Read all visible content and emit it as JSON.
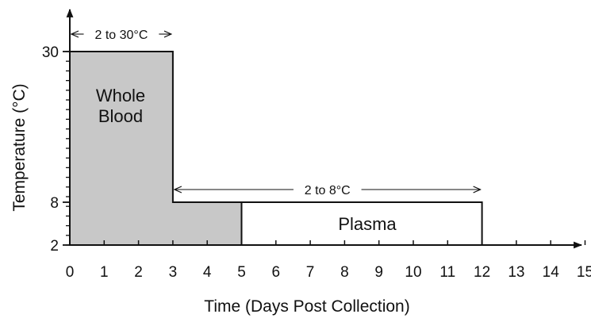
{
  "chart_data": {
    "type": "area",
    "xlabel": "Time (Days Post Collection)",
    "ylabel": "Temperature (°C)",
    "xlim": [
      0,
      15
    ],
    "x_ticks": [
      "0",
      "1",
      "2",
      "3",
      "4",
      "5",
      "6",
      "7",
      "8",
      "9",
      "10",
      "11",
      "12",
      "13",
      "14",
      "15"
    ],
    "y_ticks": [
      {
        "value": 2,
        "label": "2"
      },
      {
        "value": 8,
        "label": "8"
      },
      {
        "value": 30,
        "label": "30"
      }
    ],
    "grid": false,
    "regions": [
      {
        "name": "Whole Blood",
        "fill": "#c8c8c8",
        "points": [
          [
            0,
            2
          ],
          [
            0,
            30
          ],
          [
            3,
            30
          ],
          [
            3,
            8
          ],
          [
            5,
            8
          ],
          [
            5,
            2
          ]
        ]
      },
      {
        "name": "Plasma",
        "fill": "#ffffff",
        "points": [
          [
            5,
            2
          ],
          [
            5,
            8
          ],
          [
            12,
            8
          ],
          [
            12,
            2
          ]
        ]
      }
    ],
    "annotations": [
      {
        "text": "2 to 30°C",
        "from": 0,
        "to": 3,
        "y": 30
      },
      {
        "text": "2 to 8°C",
        "from": 3,
        "to": 12,
        "y": 8
      }
    ]
  },
  "colors": {
    "whole_blood_fill": "#c8c8c8",
    "plasma_fill": "#ffffff",
    "line": "#111111"
  }
}
